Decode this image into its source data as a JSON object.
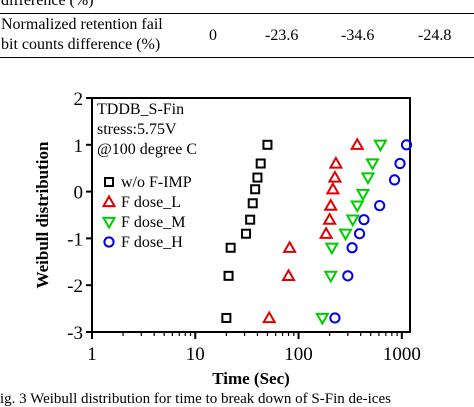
{
  "table": {
    "row1_label": "difference (%)",
    "row2_label_line1": "Normalized retention fail",
    "row2_label_line2": "bit counts difference (%)",
    "row2_values": [
      "0",
      "-23.6",
      "-34.6",
      "-24.8"
    ]
  },
  "chart_data": {
    "type": "scatter",
    "title": "",
    "xlabel": "Time (Sec)",
    "ylabel": "Weibull distribution",
    "x_scale": "log",
    "xlim": [
      1,
      1200
    ],
    "ylim": [
      -3,
      2
    ],
    "x_ticks": [
      "1",
      "10",
      "100",
      "1000"
    ],
    "y_ticks": [
      "-3",
      "-2",
      "-1",
      "0",
      "1",
      "2"
    ],
    "annotation": [
      "TDDB_S-Fin",
      "stress:5.75V",
      "@100 degree C"
    ],
    "legend_position": "center-left",
    "series": [
      {
        "name": "w/o F-IMP",
        "marker": "square",
        "color": "#000000",
        "points": [
          [
            20,
            -2.7
          ],
          [
            21,
            -1.8
          ],
          [
            22,
            -1.2
          ],
          [
            31,
            -0.9
          ],
          [
            34,
            -0.6
          ],
          [
            36,
            -0.25
          ],
          [
            38,
            0.05
          ],
          [
            40,
            0.3
          ],
          [
            43,
            0.6
          ],
          [
            50,
            1.0
          ]
        ]
      },
      {
        "name": "F dose_L",
        "marker": "triangle-up",
        "color": "#e00000",
        "points": [
          [
            52,
            -2.7
          ],
          [
            80,
            -1.8
          ],
          [
            82,
            -1.2
          ],
          [
            185,
            -0.9
          ],
          [
            200,
            -0.6
          ],
          [
            205,
            -0.3
          ],
          [
            215,
            0.05
          ],
          [
            225,
            0.3
          ],
          [
            230,
            0.6
          ],
          [
            370,
            1.0
          ]
        ]
      },
      {
        "name": "F dose_M",
        "marker": "triangle-down",
        "color": "#00cc00",
        "points": [
          [
            170,
            -2.7
          ],
          [
            205,
            -1.8
          ],
          [
            210,
            -1.2
          ],
          [
            285,
            -0.9
          ],
          [
            335,
            -0.6
          ],
          [
            370,
            -0.3
          ],
          [
            420,
            -0.05
          ],
          [
            470,
            0.3
          ],
          [
            520,
            0.6
          ],
          [
            620,
            1.0
          ]
        ]
      },
      {
        "name": "F dose_H",
        "marker": "circle",
        "color": "#0000ee",
        "points": [
          [
            225,
            -2.7
          ],
          [
            300,
            -1.8
          ],
          [
            330,
            -1.2
          ],
          [
            390,
            -0.9
          ],
          [
            430,
            -0.6
          ],
          [
            610,
            -0.3
          ],
          [
            850,
            0.25
          ],
          [
            960,
            0.6
          ],
          [
            1110,
            1.0
          ]
        ]
      }
    ]
  },
  "caption": "ig. 3 Weibull distribution for time to break down of S-Fin de-ices"
}
